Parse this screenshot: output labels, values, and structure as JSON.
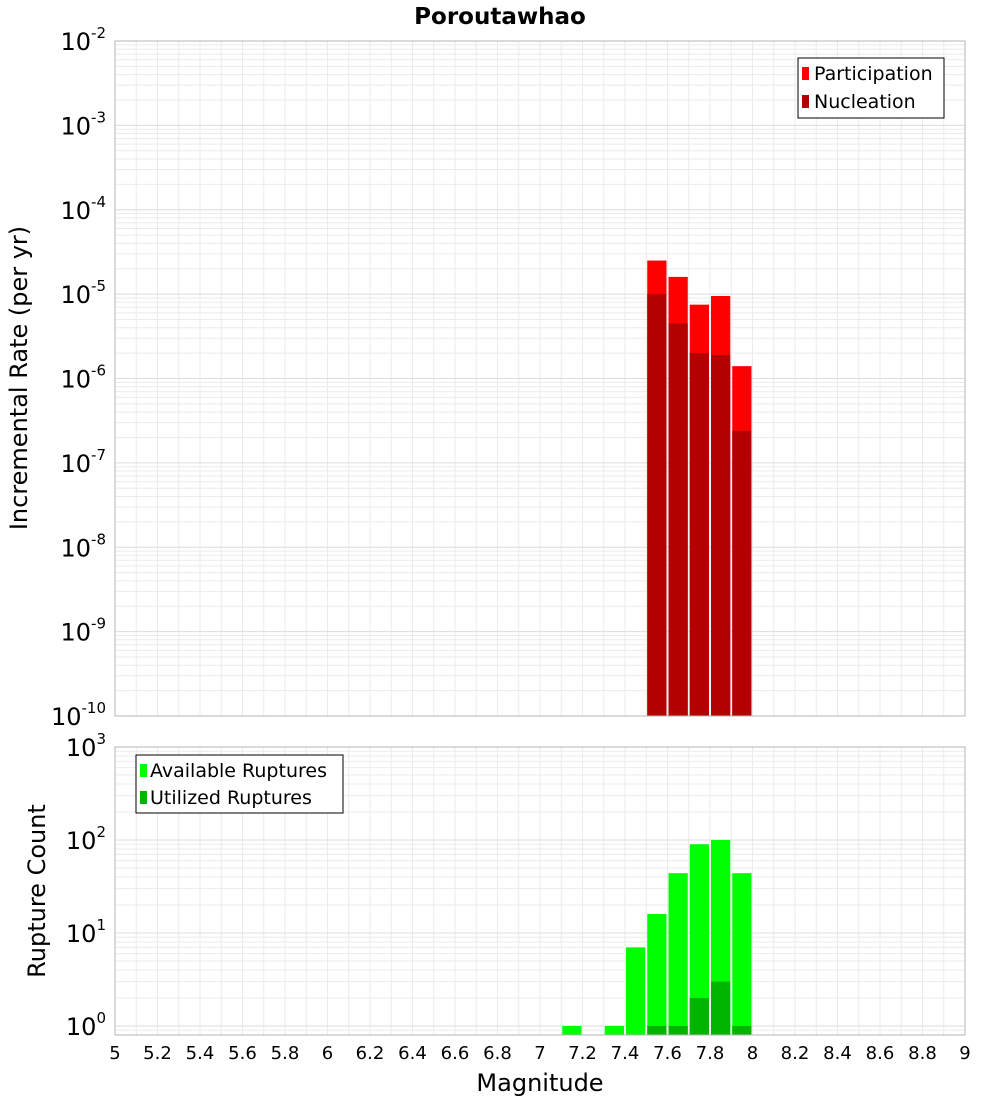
{
  "chart_data": [
    {
      "type": "bar",
      "panel": "top",
      "title": "Poroutawhao",
      "xlabel": "Magnitude",
      "ylabel": "Incremental Rate (per yr)",
      "yscale": "log",
      "xlim": [
        5,
        9
      ],
      "ylim": [
        1e-10,
        0.01
      ],
      "y_tick_exponents": [
        -10,
        -9,
        -8,
        -7,
        -6,
        -5,
        -4,
        -3,
        -2
      ],
      "bin_width": 0.1,
      "series": [
        {
          "name": "Participation",
          "color": "#ff0000",
          "x": [
            7.55,
            7.65,
            7.75,
            7.85,
            7.95
          ],
          "values": [
            2.5e-05,
            1.6e-05,
            7.5e-06,
            9.5e-06,
            1.4e-06
          ]
        },
        {
          "name": "Nucleation",
          "color": "#b40000",
          "x": [
            7.55,
            7.65,
            7.75,
            7.85,
            7.95
          ],
          "values": [
            1e-05,
            4.5e-06,
            2e-06,
            1.9e-06,
            2.4e-07
          ]
        }
      ],
      "legend": "top-right"
    },
    {
      "type": "bar",
      "panel": "bottom",
      "xlabel": "Magnitude",
      "ylabel": "Rupture Count",
      "yscale": "log",
      "xlim": [
        5,
        9
      ],
      "ylim": [
        0.8,
        1000
      ],
      "y_tick_exponents": [
        0,
        1,
        2,
        3
      ],
      "x_ticks": [
        "5",
        "5.2",
        "5.4",
        "5.6",
        "5.8",
        "6",
        "6.2",
        "6.4",
        "6.6",
        "6.8",
        "7",
        "7.2",
        "7.4",
        "7.6",
        "7.8",
        "8",
        "8.2",
        "8.4",
        "8.6",
        "8.8",
        "9"
      ],
      "bin_width": 0.1,
      "series": [
        {
          "name": "Available Ruptures",
          "color": "#00ff00",
          "x": [
            7.15,
            7.35,
            7.45,
            7.55,
            7.65,
            7.75,
            7.85,
            7.95
          ],
          "values": [
            1,
            1,
            7,
            16,
            44,
            90,
            100,
            44
          ]
        },
        {
          "name": "Utilized Ruptures",
          "color": "#00b400",
          "x": [
            7.55,
            7.65,
            7.75,
            7.85,
            7.95
          ],
          "values": [
            1,
            1,
            2,
            3,
            1
          ]
        }
      ],
      "legend": "top-left"
    }
  ]
}
